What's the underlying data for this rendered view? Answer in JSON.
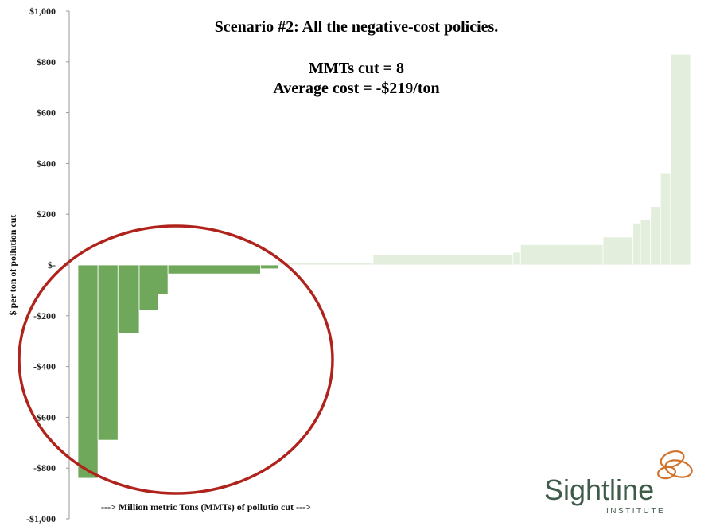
{
  "chart_data": {
    "type": "bar",
    "title": "Scenario #2: All the negative-cost policies.",
    "annotations": [
      "MMTs cut = 8",
      "Average cost = -$219/ton"
    ],
    "xlabel": "---> Million metric Tons (MMTs) of pollutio cut --->",
    "ylabel": "$ per ton of pollution cut",
    "ylim": [
      -1000,
      1000
    ],
    "yticks": [
      {
        "value": 1000,
        "label": "$1,000"
      },
      {
        "value": 800,
        "label": "$800"
      },
      {
        "value": 600,
        "label": "$600"
      },
      {
        "value": 400,
        "label": "$400"
      },
      {
        "value": 200,
        "label": "$200"
      },
      {
        "value": 0,
        "label": "$-"
      },
      {
        "value": -200,
        "label": "-$200"
      },
      {
        "value": -400,
        "label": "-$400"
      },
      {
        "value": -600,
        "label": "-$600"
      },
      {
        "value": -800,
        "label": "-$800"
      },
      {
        "value": -1000,
        "label": "-$1,000"
      }
    ],
    "xlim": [
      0,
      25.2
    ],
    "bar_layout": "variable-width cost curve (step bars)",
    "highlight": "negative-cost policies circled",
    "colors": {
      "highlighted": "#6fa85a",
      "faded": "#e3eedc",
      "circle": "#b0231c"
    },
    "segments": [
      {
        "x0": 0.0,
        "x1": 0.8,
        "value": -840,
        "highlight": true
      },
      {
        "x0": 0.8,
        "x1": 1.6,
        "value": -690,
        "highlight": true
      },
      {
        "x0": 1.6,
        "x1": 2.4,
        "value": -270,
        "highlight": true
      },
      {
        "x0": 2.4,
        "x1": 2.4,
        "value": -270,
        "highlight": true
      },
      {
        "x0": 2.4,
        "x1": 2.4,
        "value": -270,
        "highlight": true
      },
      {
        "x0": 2.4,
        "x1": 2.45,
        "value": -270,
        "highlight": true
      },
      {
        "x0": 2.45,
        "x1": 3.2,
        "value": -180,
        "highlight": true
      },
      {
        "x0": 3.2,
        "x1": 3.6,
        "value": -115,
        "highlight": true
      },
      {
        "x0": 3.6,
        "x1": 7.3,
        "value": -35,
        "highlight": true
      },
      {
        "x0": 7.3,
        "x1": 8.0,
        "value": -15,
        "highlight": true
      },
      {
        "x0": 8.0,
        "x1": 11.8,
        "value": 10,
        "highlight": false
      },
      {
        "x0": 11.8,
        "x1": 17.4,
        "value": 40,
        "highlight": false
      },
      {
        "x0": 17.4,
        "x1": 17.7,
        "value": 50,
        "highlight": false
      },
      {
        "x0": 17.7,
        "x1": 21.0,
        "value": 80,
        "highlight": false
      },
      {
        "x0": 21.0,
        "x1": 22.2,
        "value": 110,
        "highlight": false
      },
      {
        "x0": 22.2,
        "x1": 22.5,
        "value": 165,
        "highlight": false
      },
      {
        "x0": 22.5,
        "x1": 22.9,
        "value": 180,
        "highlight": false
      },
      {
        "x0": 22.9,
        "x1": 23.3,
        "value": 230,
        "highlight": false
      },
      {
        "x0": 23.3,
        "x1": 23.7,
        "value": 360,
        "highlight": false
      },
      {
        "x0": 23.7,
        "x1": 24.5,
        "value": 830,
        "highlight": false
      }
    ]
  },
  "logo": {
    "name": "Sightline",
    "tagline": "INSTITUTE",
    "color": "#3f5b49",
    "accent": "#d2722a"
  }
}
